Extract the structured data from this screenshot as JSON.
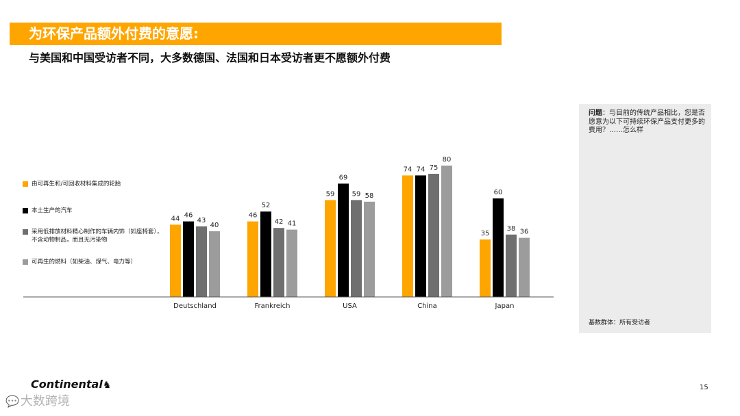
{
  "header": {
    "title": "为环保产品额外付费的意愿:",
    "subtitle": "与美国和中国受访者不同，大多数德国、法国和日本受访者更不愿额外付费"
  },
  "question": {
    "label": "问题",
    "text": "：与目前的传统产品相比，您是否愿意为以下可持续环保产品支付更多的费用？……怎么样",
    "base": "基数群体：所有受访者"
  },
  "footer": {
    "logo": "Continental",
    "logo_icon": "horse-icon",
    "page_number": "15",
    "watermark": "大数跨境",
    "watermark_icon": "chat-bubble-icon"
  },
  "chart_data": {
    "type": "bar",
    "categories": [
      "Deutschland",
      "Frankreich",
      "USA",
      "China",
      "Japan"
    ],
    "series": [
      {
        "name": "由可再生和/可回收材料集成的轮胎",
        "color": "#FFA500",
        "values": [
          44,
          46,
          59,
          74,
          35
        ]
      },
      {
        "name": "本土生产的汽车",
        "color": "#000000",
        "values": [
          46,
          52,
          69,
          74,
          60
        ]
      },
      {
        "name": "采用低排放材料精心制作的车辆内饰（如座椅套），不含动物制品，而且无污染物",
        "color": "#6f6f6f",
        "values": [
          43,
          42,
          59,
          75,
          38
        ]
      },
      {
        "name": "可再生的燃料（如柴油、煤气、电力等）",
        "color": "#9c9c9c",
        "values": [
          40,
          41,
          58,
          80,
          36
        ]
      }
    ],
    "ylim": [
      0,
      100
    ],
    "grid": false,
    "legend_position": "left"
  }
}
